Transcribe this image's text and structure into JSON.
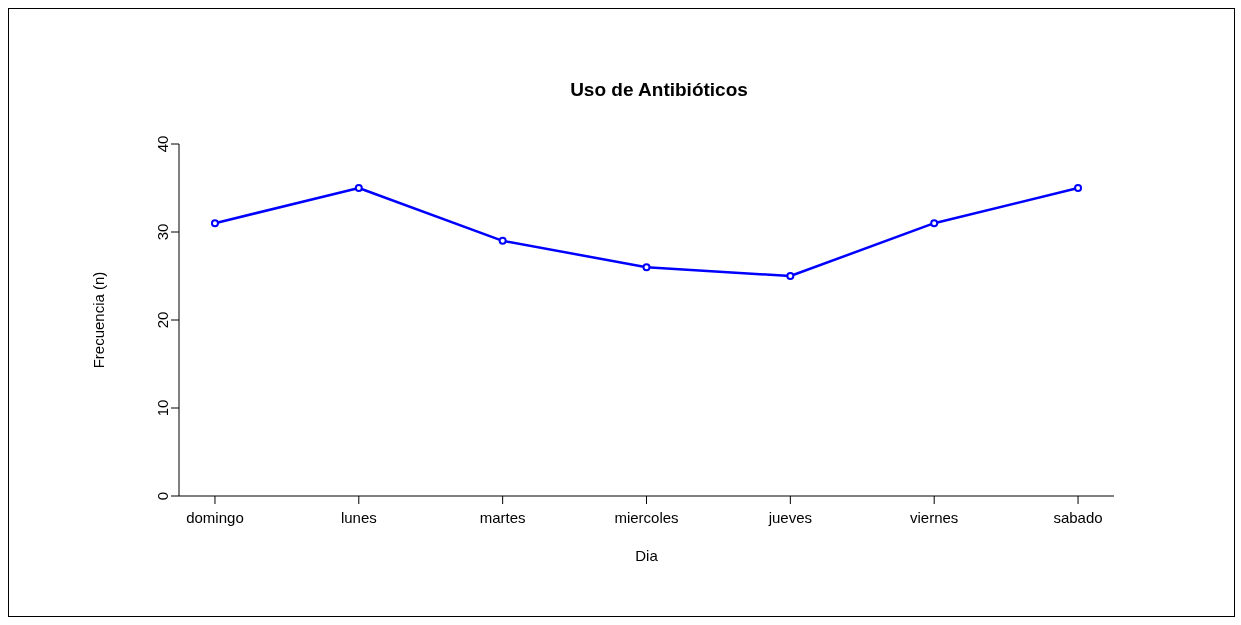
{
  "chart_data": {
    "type": "line",
    "title": "Uso de Antibióticos",
    "xlabel": "Dia",
    "ylabel": "Frecuencia (n)",
    "categories": [
      "domingo",
      "lunes",
      "martes",
      "miercoles",
      "jueves",
      "viernes",
      "sabado"
    ],
    "series": [
      {
        "color": "#0000ff",
        "values": [
          31,
          35,
          29,
          26,
          25,
          31,
          35
        ]
      }
    ],
    "ylim": [
      0,
      40
    ],
    "yticks": [
      0,
      10,
      20,
      30,
      40
    ],
    "grid": false,
    "legend": false,
    "marker": "circle",
    "line_style": "solid"
  }
}
